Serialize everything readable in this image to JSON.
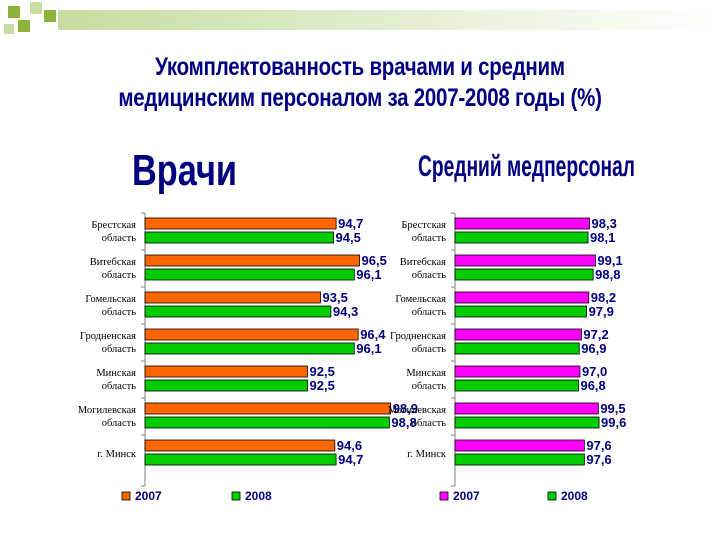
{
  "header": {
    "title_line1": "Укомплектованность врачами и средним",
    "title_line2": "медицинским персоналом  за 2007-2008 годы (%)"
  },
  "colors": {
    "deco_green": "#8db33a",
    "deco_light": "#c7dca0",
    "title": "#000080",
    "doctors_2007": "#ff6600",
    "nurses_2007": "#ff00ff",
    "series_2008": "#00cc00",
    "bar_outline": "#000000"
  },
  "chart_data": [
    {
      "type": "bar",
      "orientation": "horizontal",
      "title": "Врачи",
      "categories": [
        "Брестская область",
        "Витебская область",
        "Гомельская область",
        "Гродненская область",
        "Минская область",
        "Могилевская область",
        "г. Минск"
      ],
      "category_lines": [
        [
          "Брестская",
          "область"
        ],
        [
          "Витебская",
          "область"
        ],
        [
          "Гомельская",
          "область"
        ],
        [
          "Гродненская",
          "область"
        ],
        [
          "Минская",
          "область"
        ],
        [
          "Могилевская",
          "область"
        ],
        [
          "г. Минск"
        ]
      ],
      "series": [
        {
          "name": "2007",
          "color": "#ff6600",
          "values": [
            94.7,
            96.5,
            93.5,
            96.4,
            92.5,
            98.9,
            94.6
          ],
          "labels": [
            "94,7",
            "96,5",
            "93,5",
            "96,4",
            "92,5",
            "98,9",
            "94,6"
          ]
        },
        {
          "name": "2008",
          "color": "#00cc00",
          "values": [
            94.5,
            96.1,
            94.3,
            96.1,
            92.5,
            98.8,
            94.7
          ],
          "labels": [
            "94,5",
            "96,1",
            "94,3",
            "96,1",
            "92,5",
            "98,8",
            "94,7"
          ]
        }
      ],
      "legend_position": "bottom"
    },
    {
      "type": "bar",
      "orientation": "horizontal",
      "title": "Средний медперсонал",
      "categories": [
        "Брестская область",
        "Витебская область",
        "Гомельская область",
        "Гродненская область",
        "Минская область",
        "Могилевская область",
        "г. Минск"
      ],
      "category_lines": [
        [
          "Брестская",
          "область"
        ],
        [
          "Витебская",
          "область"
        ],
        [
          "Гомельская",
          "область"
        ],
        [
          "Гродненская",
          "область"
        ],
        [
          "Минская",
          "область"
        ],
        [
          "Могилевская",
          "область"
        ],
        [
          "г. Минск"
        ]
      ],
      "series": [
        {
          "name": "2007",
          "color": "#ff00ff",
          "values": [
            98.3,
            99.1,
            98.2,
            97.2,
            97.0,
            99.5,
            97.6
          ],
          "labels": [
            "98,3",
            "99,1",
            "98,2",
            "97,2",
            "97,0",
            "99,5",
            "97,6"
          ]
        },
        {
          "name": "2008",
          "color": "#00cc00",
          "values": [
            98.1,
            98.8,
            97.9,
            96.9,
            96.8,
            99.6,
            97.6
          ],
          "labels": [
            "98,1",
            "98,8",
            "97,9",
            "96,9",
            "96,8",
            "99,6",
            "97,6"
          ]
        }
      ],
      "legend_position": "bottom"
    }
  ]
}
